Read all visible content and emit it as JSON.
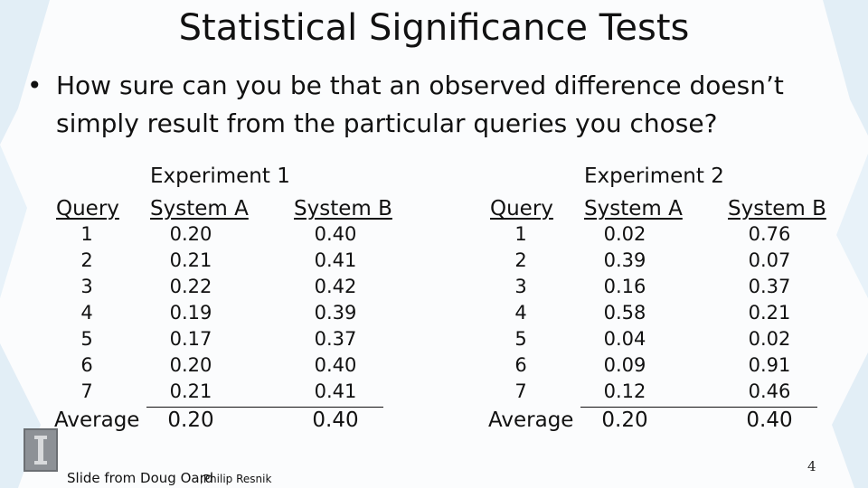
{
  "slide": {
    "title": "Statistical Significance Tests",
    "bullet_symbol": "•",
    "bullet_text": "How sure can you be that an observed difference doesn’t simply result from the particular queries you chose?",
    "page_number": "4",
    "credit_main": "Slide from Doug Oard",
    "credit_sub": ",Philip Resnik"
  },
  "experiments": [
    {
      "title": "Experiment 1",
      "headers": [
        "Query",
        "System A",
        "System B"
      ],
      "rows": [
        [
          "1",
          "0.20",
          "0.40"
        ],
        [
          "2",
          "0.21",
          "0.41"
        ],
        [
          "3",
          "0.22",
          "0.42"
        ],
        [
          "4",
          "0.19",
          "0.39"
        ],
        [
          "5",
          "0.17",
          "0.37"
        ],
        [
          "6",
          "0.20",
          "0.40"
        ],
        [
          "7",
          "0.21",
          "0.41"
        ]
      ],
      "average_label": "Average",
      "average_values": [
        "0.20",
        "0.40"
      ]
    },
    {
      "title": "Experiment 2",
      "headers": [
        "Query",
        "System A",
        "System B"
      ],
      "rows": [
        [
          "1",
          "0.02",
          "0.76"
        ],
        [
          "2",
          "0.39",
          "0.07"
        ],
        [
          "3",
          "0.16",
          "0.37"
        ],
        [
          "4",
          "0.58",
          "0.21"
        ],
        [
          "5",
          "0.04",
          "0.02"
        ],
        [
          "6",
          "0.09",
          "0.91"
        ],
        [
          "7",
          "0.12",
          "0.46"
        ]
      ],
      "average_label": "Average",
      "average_values": [
        "0.20",
        "0.40"
      ]
    }
  ]
}
